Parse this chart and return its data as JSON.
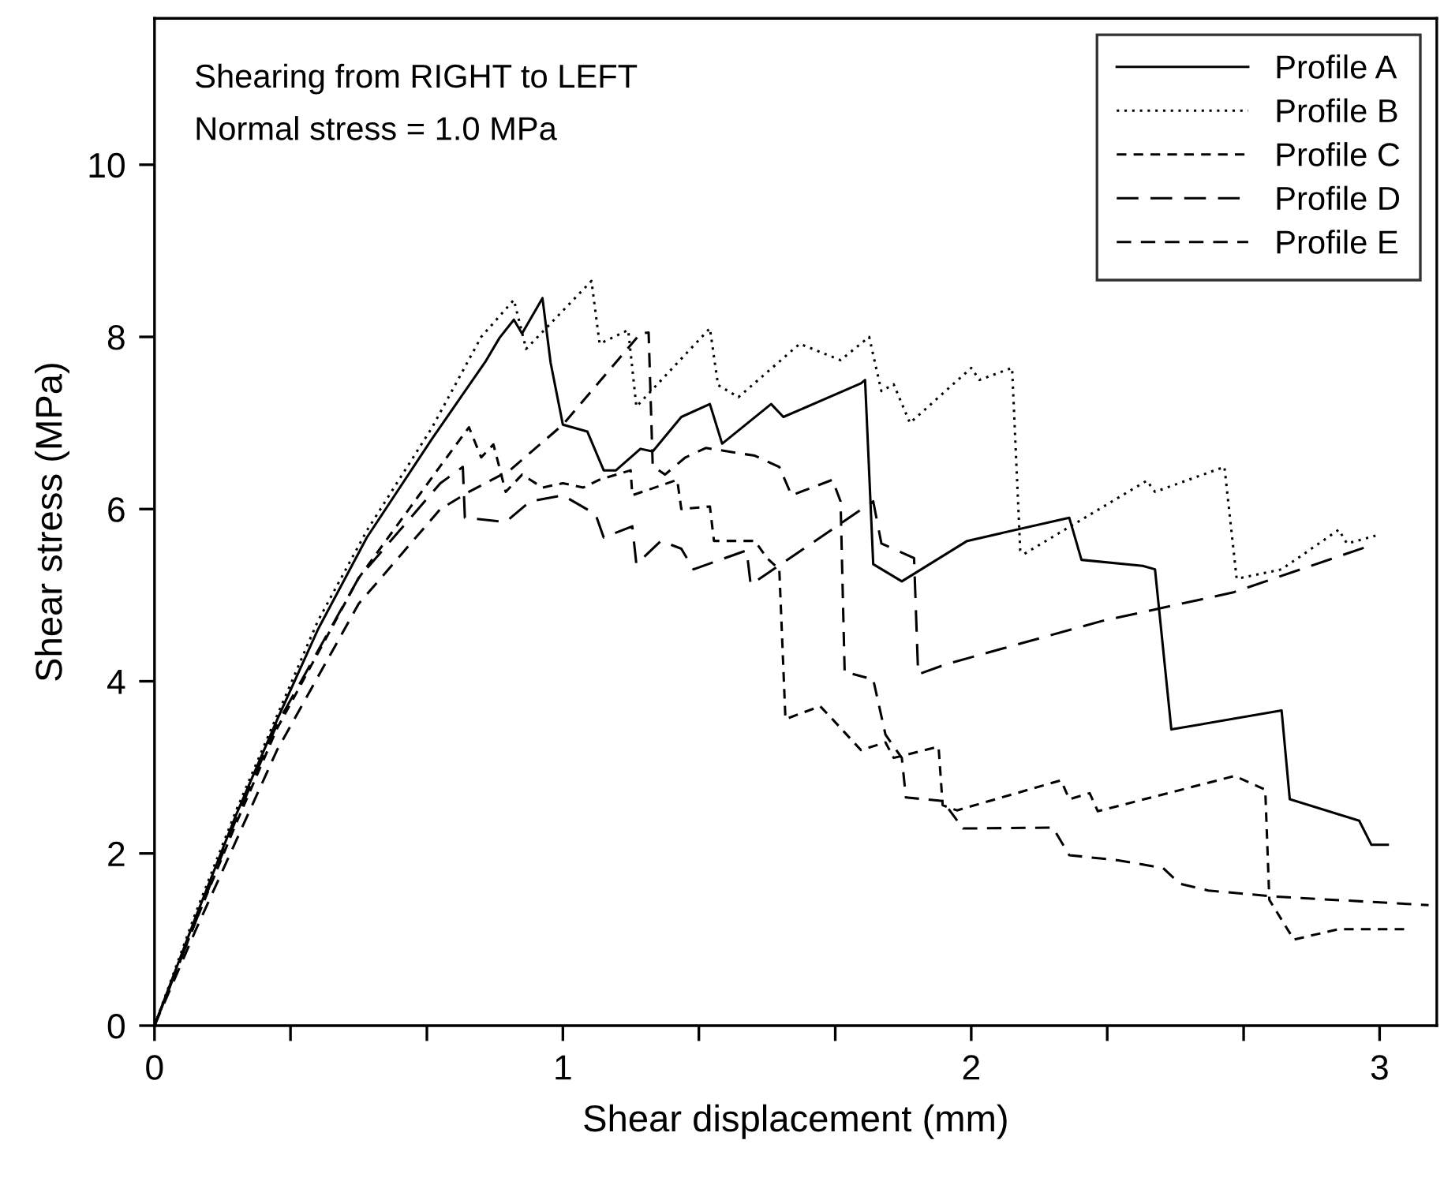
{
  "chart_data": {
    "type": "line",
    "xlabel": "Shear displacement (mm)",
    "ylabel": "Shear stress (MPa)",
    "annotations": [
      "Shearing from RIGHT to LEFT",
      "Normal stress = 1.0 MPa"
    ],
    "xlim": [
      0,
      3.14
    ],
    "ylim": [
      0,
      11.7
    ],
    "xticks": [
      0,
      {
        "value": 0.333,
        "label": null
      },
      {
        "value": 0.667,
        "label": null
      },
      1,
      {
        "value": 1.333,
        "label": null
      },
      {
        "value": 1.667,
        "label": null
      },
      2,
      {
        "value": 2.333,
        "label": null
      },
      {
        "value": 2.667,
        "label": null
      },
      3
    ],
    "yticks": [
      0,
      2,
      4,
      6,
      8,
      10
    ],
    "grid": false,
    "legend": "top right",
    "marker": "none",
    "series": [
      {
        "name": "Profile A",
        "color": "#000000",
        "line_style": "solid",
        "x": [
          0,
          0.1,
          0.2,
          0.3,
          0.4,
          0.52,
          0.68,
          0.81,
          0.845,
          0.88,
          0.9,
          0.95,
          0.97,
          1.0,
          1.06,
          1.1,
          1.13,
          1.19,
          1.22,
          1.29,
          1.36,
          1.39,
          1.51,
          1.54,
          1.73,
          1.74,
          1.76,
          1.83,
          1.99,
          2.24,
          2.27,
          2.42,
          2.45,
          2.49,
          2.76,
          2.78,
          2.95,
          2.98,
          3.02
        ],
        "values": [
          0,
          1.25,
          2.45,
          3.55,
          4.6,
          5.67,
          6.82,
          7.71,
          7.99,
          8.2,
          8.04,
          8.45,
          7.7,
          6.98,
          6.9,
          6.45,
          6.45,
          6.7,
          6.67,
          7.07,
          7.22,
          6.76,
          7.22,
          7.07,
          7.46,
          7.5,
          5.36,
          5.16,
          5.63,
          5.9,
          5.41,
          5.34,
          5.3,
          3.44,
          3.66,
          2.63,
          2.38,
          2.1,
          2.1
        ]
      },
      {
        "name": "Profile B",
        "color": "#000000",
        "line_style": "dotted",
        "x": [
          0,
          0.1,
          0.2,
          0.3,
          0.4,
          0.52,
          0.68,
          0.8,
          0.88,
          0.91,
          1.07,
          1.09,
          1.16,
          1.18,
          1.36,
          1.38,
          1.43,
          1.58,
          1.68,
          1.75,
          1.78,
          1.81,
          1.85,
          2.0,
          2.02,
          2.1,
          2.12,
          2.13,
          2.43,
          2.45,
          2.62,
          2.65,
          2.76,
          2.9,
          2.92,
          2.99
        ],
        "values": [
          0,
          1.3,
          2.5,
          3.6,
          4.7,
          5.75,
          6.95,
          8.0,
          8.43,
          7.86,
          8.65,
          7.92,
          8.08,
          7.19,
          8.1,
          7.44,
          7.3,
          7.92,
          7.73,
          8.0,
          7.37,
          7.45,
          7.0,
          7.64,
          7.5,
          7.64,
          5.52,
          5.48,
          6.33,
          6.2,
          6.49,
          5.19,
          5.3,
          5.76,
          5.6,
          5.69
        ]
      },
      {
        "name": "Profile C",
        "color": "#000000",
        "line_style": "dashed",
        "x": [
          0,
          0.1,
          0.2,
          0.3,
          0.5,
          0.7,
          0.77,
          0.8,
          0.83,
          0.86,
          0.9,
          0.95,
          1.0,
          1.05,
          1.089,
          1.166,
          1.17,
          1.28,
          1.29,
          1.36,
          1.37,
          1.47,
          1.5,
          1.53,
          1.545,
          1.63,
          1.66,
          1.73,
          1.79,
          1.81,
          1.92,
          1.93,
          1.965,
          2.22,
          2.24,
          2.29,
          2.31,
          2.645,
          2.72,
          2.73,
          2.79,
          2.9,
          3.06
        ],
        "values": [
          0,
          1.2,
          2.35,
          3.45,
          5.2,
          6.5,
          6.95,
          6.6,
          6.75,
          6.2,
          6.4,
          6.25,
          6.3,
          6.25,
          6.34,
          6.45,
          6.16,
          6.34,
          6.0,
          6.03,
          5.63,
          5.63,
          5.43,
          5.3,
          3.56,
          3.71,
          3.56,
          3.2,
          3.29,
          3.11,
          3.24,
          2.56,
          2.5,
          2.85,
          2.63,
          2.7,
          2.49,
          2.9,
          2.74,
          1.46,
          1.0,
          1.12,
          1.12
        ]
      },
      {
        "name": "Profile D",
        "color": "#000000",
        "line_style": "dashed",
        "x": [
          0,
          0.1,
          0.2,
          0.3,
          0.5,
          0.7,
          0.755,
          0.76,
          0.86,
          0.92,
          1.0,
          1.08,
          1.1,
          1.17,
          1.18,
          1.24,
          1.29,
          1.32,
          1.45,
          1.46,
          1.76,
          1.78,
          1.86,
          1.87,
          1.94,
          2.32,
          2.64,
          2.98
        ],
        "values": [
          0,
          1.2,
          2.4,
          3.5,
          5.2,
          6.3,
          6.49,
          5.9,
          5.85,
          6.09,
          6.16,
          5.94,
          5.67,
          5.8,
          5.36,
          5.63,
          5.54,
          5.3,
          5.52,
          5.12,
          6.09,
          5.6,
          5.43,
          4.08,
          4.2,
          4.7,
          5.03,
          5.58
        ]
      },
      {
        "name": "Profile E",
        "color": "#000000",
        "line_style": "dashed",
        "x": [
          0,
          0.1,
          0.2,
          0.3,
          0.5,
          0.7,
          0.77,
          0.87,
          1.0,
          1.19,
          1.21,
          1.22,
          1.25,
          1.3,
          1.35,
          1.47,
          1.53,
          1.56,
          1.66,
          1.68,
          1.69,
          1.76,
          1.79,
          1.83,
          1.84,
          1.93,
          1.98,
          2.2,
          2.24,
          2.36,
          2.47,
          2.51,
          2.58,
          2.74,
          3.12
        ],
        "values": [
          0,
          1.1,
          2.15,
          3.2,
          4.9,
          6.0,
          6.2,
          6.45,
          6.98,
          8.04,
          8.05,
          6.5,
          6.4,
          6.6,
          6.71,
          6.62,
          6.49,
          6.16,
          6.34,
          6.09,
          4.11,
          4.02,
          3.38,
          3.11,
          2.65,
          2.61,
          2.29,
          2.3,
          1.98,
          1.92,
          1.83,
          1.65,
          1.57,
          1.5,
          1.4
        ]
      }
    ]
  }
}
